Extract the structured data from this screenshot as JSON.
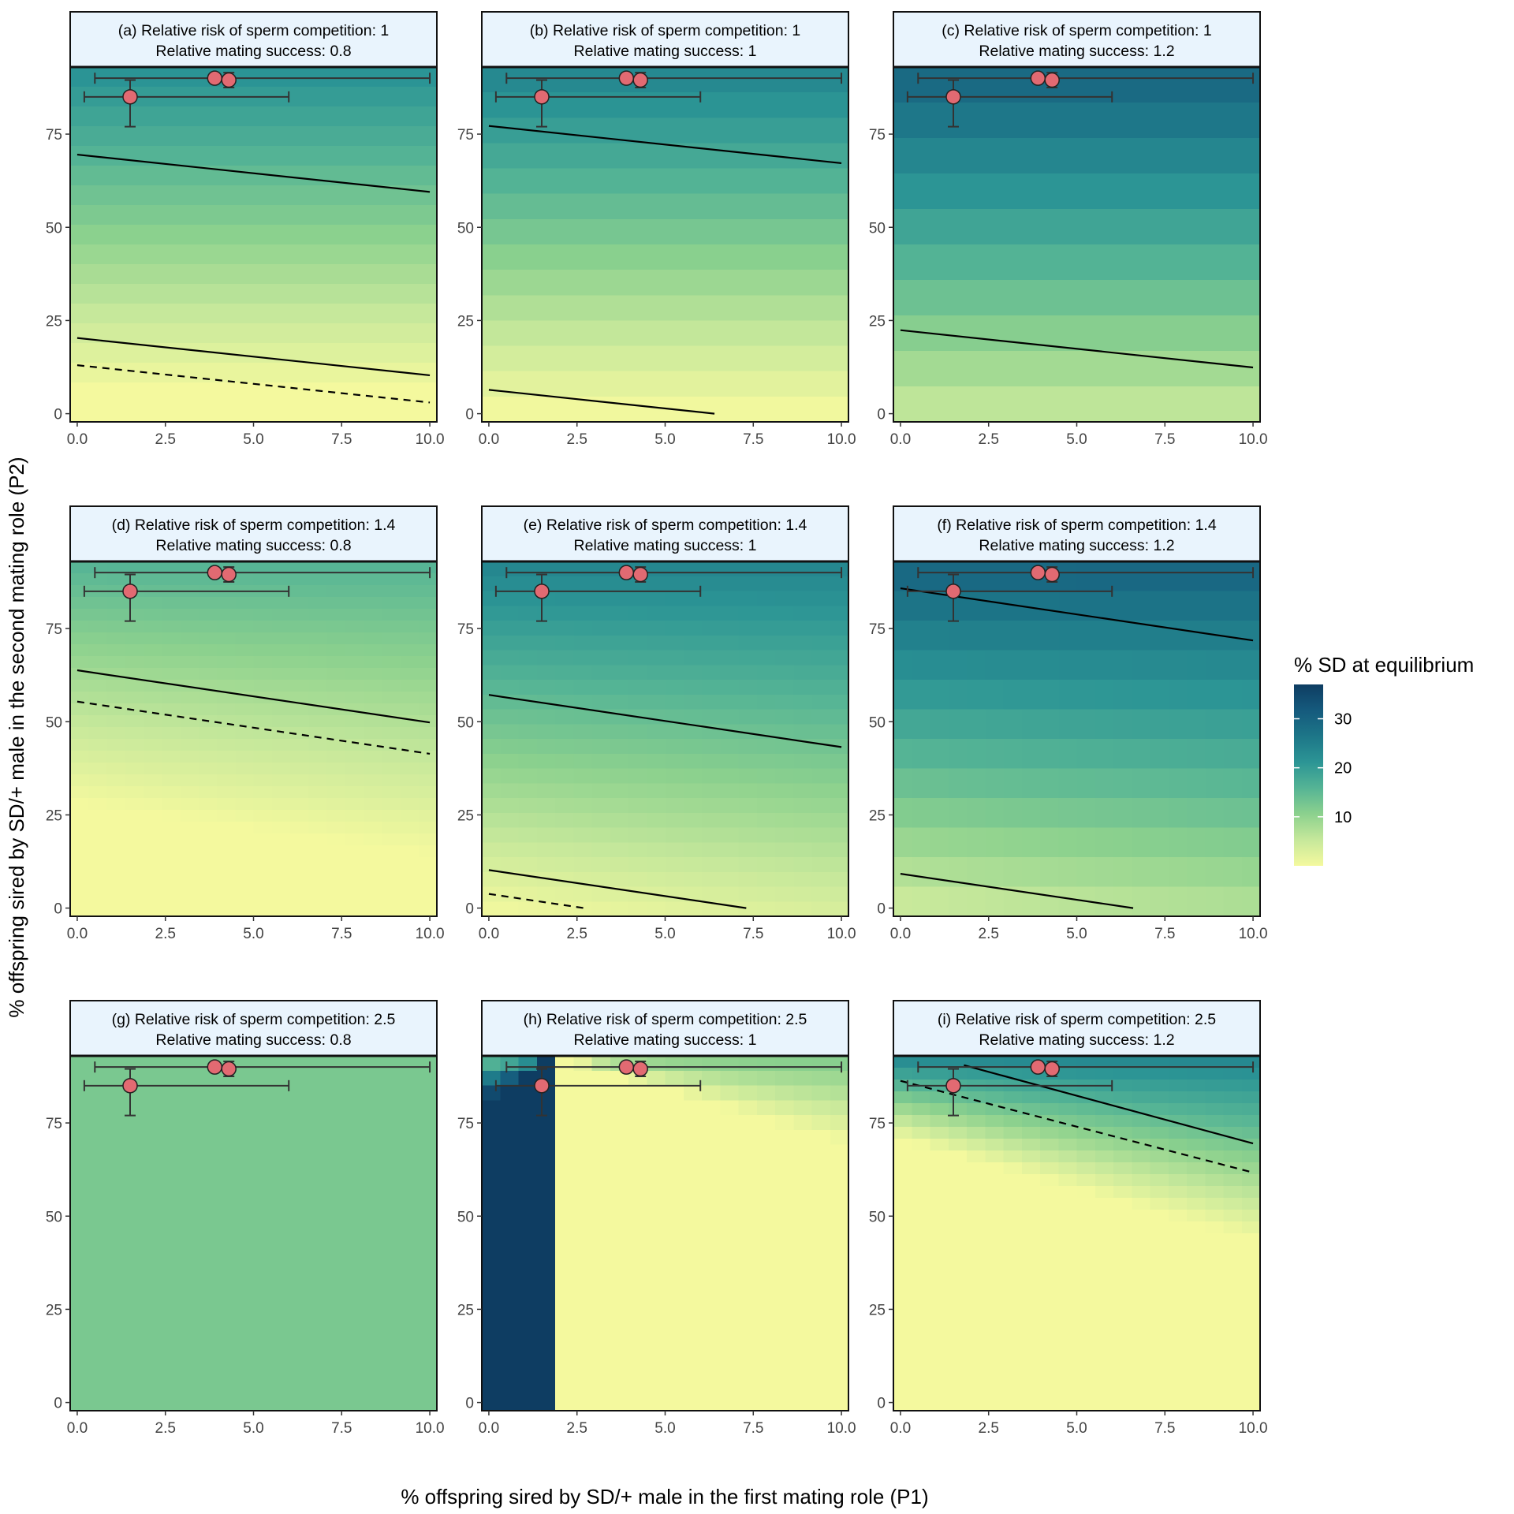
{
  "figure": {
    "xlabel": "% offspring sired by SD/+ male in the first mating role (P1)",
    "ylabel": "% offspring sired by SD/+ male in the second mating role (P2)",
    "xlim": [
      0,
      10
    ],
    "ylim": [
      0,
      93
    ],
    "x_ticks": [
      "0.0",
      "2.5",
      "5.0",
      "7.5",
      "10.0"
    ],
    "y_ticks": [
      "0",
      "25",
      "50",
      "75"
    ]
  },
  "legend": {
    "title": "% SD at equilibrium",
    "ticks": [
      "10",
      "20",
      "30"
    ],
    "range": [
      0,
      37
    ],
    "colors": [
      "#f4f99e",
      "#c6e89b",
      "#8cd18e",
      "#55b495",
      "#2c9595",
      "#1d7688",
      "#155a7d",
      "#0e3d62"
    ]
  },
  "chart_data": [
    {
      "type": "heatmap",
      "title": "(a) Relative risk of sperm competition: 1",
      "subtitle": "Relative mating success: 0.8",
      "fill": {
        "p2_full": 6,
        "p2_zero": 22,
        "slope": 0,
        "grid_rows": 18
      },
      "lines": [
        {
          "style": "solid",
          "points": [
            [
              0,
              69.5
            ],
            [
              10,
              59.5
            ]
          ]
        },
        {
          "style": "solid",
          "points": [
            [
              0,
              20.3
            ],
            [
              10,
              10.3
            ]
          ]
        },
        {
          "style": "dashed",
          "points": [
            [
              0,
              13
            ],
            [
              10,
              3
            ]
          ]
        }
      ]
    },
    {
      "type": "heatmap",
      "title": "(b) Relative risk of sperm competition: 1",
      "subtitle": "Relative mating success: 1",
      "fill": {
        "p2_full": 0,
        "p2_zero": 24,
        "slope": 0,
        "grid_rows": 14
      },
      "lines": [
        {
          "style": "solid",
          "points": [
            [
              0,
              77.2
            ],
            [
              10,
              67.2
            ]
          ]
        },
        {
          "style": "solid",
          "points": [
            [
              0,
              6.4
            ],
            [
              6.4,
              0
            ]
          ]
        }
      ]
    },
    {
      "type": "heatmap",
      "title": "(c) Relative risk of sperm competition: 1",
      "subtitle": "Relative mating success: 1.2",
      "fill": {
        "p2_full": -20,
        "p2_zero": 30,
        "slope": 0,
        "grid_rows": 10
      },
      "lines": [
        {
          "style": "solid",
          "points": [
            [
              0,
              22.4
            ],
            [
              10,
              12.4
            ]
          ]
        }
      ]
    },
    {
      "type": "heatmap",
      "title": "(d) Relative risk of sperm competition: 1.4",
      "subtitle": "Relative mating success: 0.8",
      "fill": {
        "p2_full": 28,
        "p2_zero": 16,
        "slope": 1.4,
        "grid_rows": 30
      },
      "lines": [
        {
          "style": "solid",
          "points": [
            [
              0,
              63.8
            ],
            [
              10,
              49.8
            ]
          ]
        },
        {
          "style": "dashed",
          "points": [
            [
              0,
              55.4
            ],
            [
              10,
              41.4
            ]
          ]
        }
      ]
    },
    {
      "type": "heatmap",
      "title": "(e) Relative risk of sperm competition: 1.4",
      "subtitle": "Relative mating success: 1",
      "fill": {
        "p2_full": -2,
        "p2_zero": 24,
        "slope": 1.4,
        "grid_rows": 24
      },
      "lines": [
        {
          "style": "solid",
          "points": [
            [
              0,
              10.2
            ],
            [
              7.3,
              0
            ]
          ]
        },
        {
          "style": "solid",
          "points": [
            [
              0,
              57.2
            ],
            [
              10,
              43.2
            ]
          ]
        },
        {
          "style": "dashed",
          "points": [
            [
              0,
              3.8
            ],
            [
              2.7,
              0
            ]
          ]
        }
      ]
    },
    {
      "type": "heatmap",
      "title": "(f) Relative risk of sperm competition: 1.4",
      "subtitle": "Relative mating success: 1.2",
      "fill": {
        "p2_full": -16,
        "p2_zero": 30,
        "slope": 1.4,
        "grid_rows": 12
      },
      "lines": [
        {
          "style": "solid",
          "points": [
            [
              0,
              85.8
            ],
            [
              10,
              71.8
            ]
          ]
        },
        {
          "style": "solid",
          "points": [
            [
              0,
              9.2
            ],
            [
              6.6,
              0
            ]
          ]
        }
      ]
    },
    {
      "type": "heatmap",
      "title": "(g) Relative risk of sperm competition: 2.5",
      "subtitle": "Relative mating success: 0.8",
      "fill": {
        "p2_full": 300,
        "p2_zero": 10,
        "slope": 0,
        "grid_rows": 1
      },
      "lines": []
    },
    {
      "type": "heatmap",
      "title": "(h) Relative risk of sperm competition: 2.5",
      "subtitle": "Relative mating success: 1",
      "fill": {
        "p2_full": 99,
        "p2_zero": 12,
        "slope": 3.0,
        "grid_rows": 24
      },
      "lines": []
    },
    {
      "type": "heatmap",
      "title": "(i) Relative risk of sperm competition: 2.5",
      "subtitle": "Relative mating success: 1.2",
      "fill": {
        "p2_full": 71,
        "p2_zero": 24,
        "slope": 2.8,
        "grid_rows": 30
      },
      "lines": [
        {
          "style": "solid",
          "points": [
            [
              1.8,
              90.5
            ],
            [
              10,
              69.5
            ]
          ]
        },
        {
          "style": "dashed",
          "points": [
            [
              0,
              86.3
            ],
            [
              10,
              61.7
            ]
          ]
        }
      ]
    }
  ],
  "observed_points": [
    {
      "x": 1.5,
      "y": 85,
      "xerr": [
        0.2,
        6.0
      ],
      "yerr": [
        77,
        89.5
      ]
    },
    {
      "x": 3.9,
      "y": 90,
      "xerr": [
        0.5,
        10.0
      ],
      "yerr": [
        90,
        90
      ]
    },
    {
      "x": 4.3,
      "y": 89.5,
      "xerr": [
        4.3,
        4.3
      ],
      "yerr": [
        87.5,
        91.5
      ]
    }
  ]
}
